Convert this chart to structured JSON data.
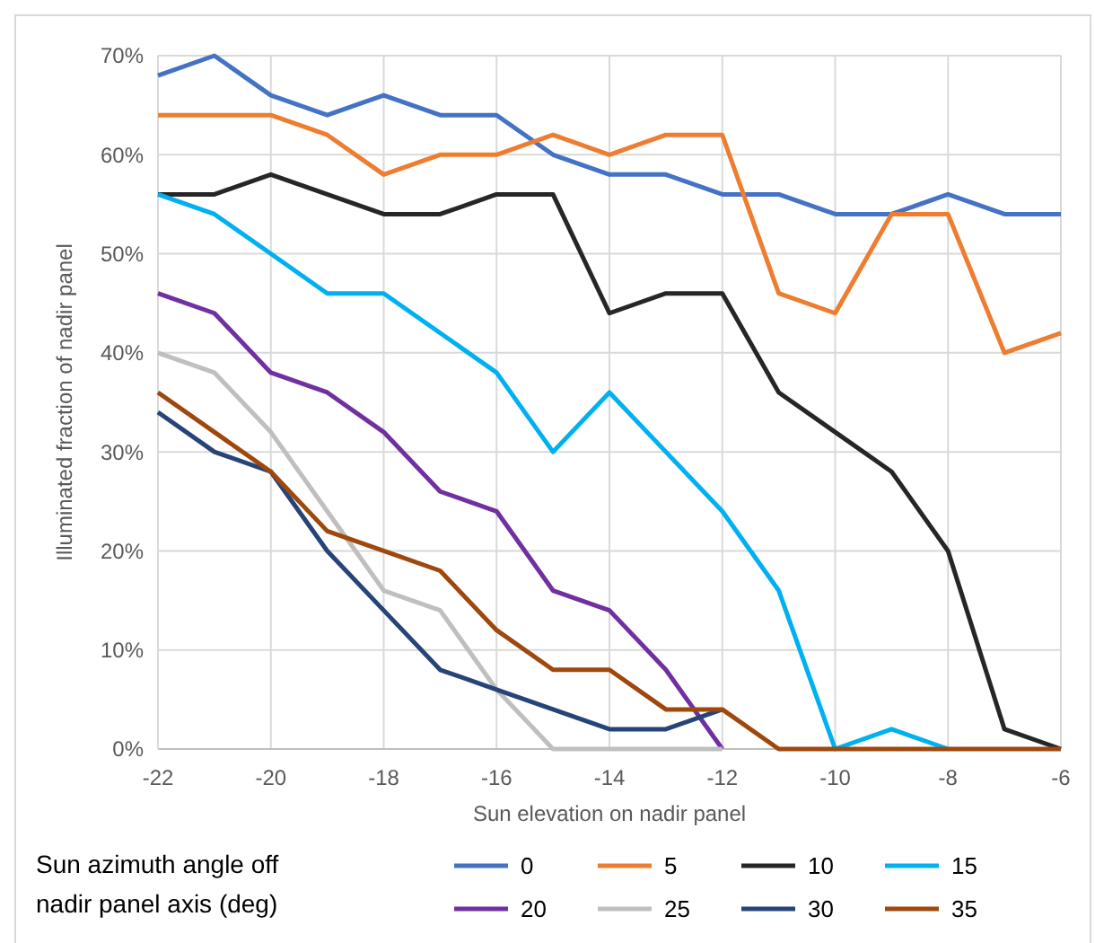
{
  "chart_data": {
    "type": "line",
    "xlabel": "Sun elevation on nadir panel",
    "ylabel": "Illuminated fraction of nadir panel",
    "legend_title": "Sun azimuth angle off nadir panel axis (deg)",
    "x": [
      -22,
      -21,
      -20,
      -19,
      -18,
      -17,
      -16,
      -15,
      -14,
      -13,
      -12,
      -11,
      -10,
      -9,
      -8,
      -7,
      -6
    ],
    "xlim": [
      -22,
      -6
    ],
    "xticks": [
      -22,
      -20,
      -18,
      -16,
      -14,
      -12,
      -10,
      -8,
      -6
    ],
    "ylim": [
      0,
      70
    ],
    "yticks": [
      {
        "value": 0,
        "label": "0%"
      },
      {
        "value": 10,
        "label": "10%"
      },
      {
        "value": 20,
        "label": "20%"
      },
      {
        "value": 30,
        "label": "30%"
      },
      {
        "value": 40,
        "label": "40%"
      },
      {
        "value": 50,
        "label": "50%"
      },
      {
        "value": 60,
        "label": "60%"
      },
      {
        "value": 70,
        "label": "70%"
      }
    ],
    "grid": true,
    "legend": "bottom",
    "marker": "none",
    "series": [
      {
        "name": "0",
        "color": "#4472c4",
        "values": [
          68,
          70,
          66,
          64,
          66,
          64,
          64,
          60,
          58,
          58,
          56,
          56,
          54,
          54,
          56,
          54,
          54
        ]
      },
      {
        "name": "5",
        "color": "#ed7d31",
        "values": [
          64,
          64,
          64,
          62,
          58,
          60,
          60,
          62,
          60,
          62,
          62,
          46,
          44,
          54,
          54,
          40,
          42
        ]
      },
      {
        "name": "10",
        "color": "#262626",
        "values": [
          56,
          56,
          58,
          56,
          54,
          54,
          56,
          56,
          44,
          46,
          46,
          36,
          32,
          28,
          20,
          2,
          0
        ]
      },
      {
        "name": "15",
        "color": "#00b0f0",
        "values": [
          56,
          54,
          50,
          46,
          46,
          42,
          38,
          30,
          36,
          30,
          24,
          16,
          0,
          2,
          0,
          null,
          null
        ]
      },
      {
        "name": "20",
        "color": "#7030a0",
        "values": [
          46,
          44,
          38,
          36,
          32,
          26,
          24,
          16,
          14,
          8,
          0,
          null,
          null,
          null,
          null,
          null,
          null
        ]
      },
      {
        "name": "25",
        "color": "#bfbfbf",
        "values": [
          40,
          38,
          32,
          24,
          16,
          14,
          6,
          0,
          0,
          0,
          0,
          null,
          null,
          null,
          null,
          null,
          null
        ]
      },
      {
        "name": "30",
        "color": "#264478",
        "values": [
          34,
          30,
          28,
          20,
          14,
          8,
          6,
          4,
          2,
          2,
          4,
          null,
          null,
          null,
          null,
          null,
          null
        ]
      },
      {
        "name": "35",
        "color": "#9e480e",
        "values": [
          36,
          32,
          28,
          22,
          20,
          18,
          12,
          8,
          8,
          4,
          4,
          0,
          0,
          0,
          0,
          0,
          0
        ]
      }
    ]
  }
}
